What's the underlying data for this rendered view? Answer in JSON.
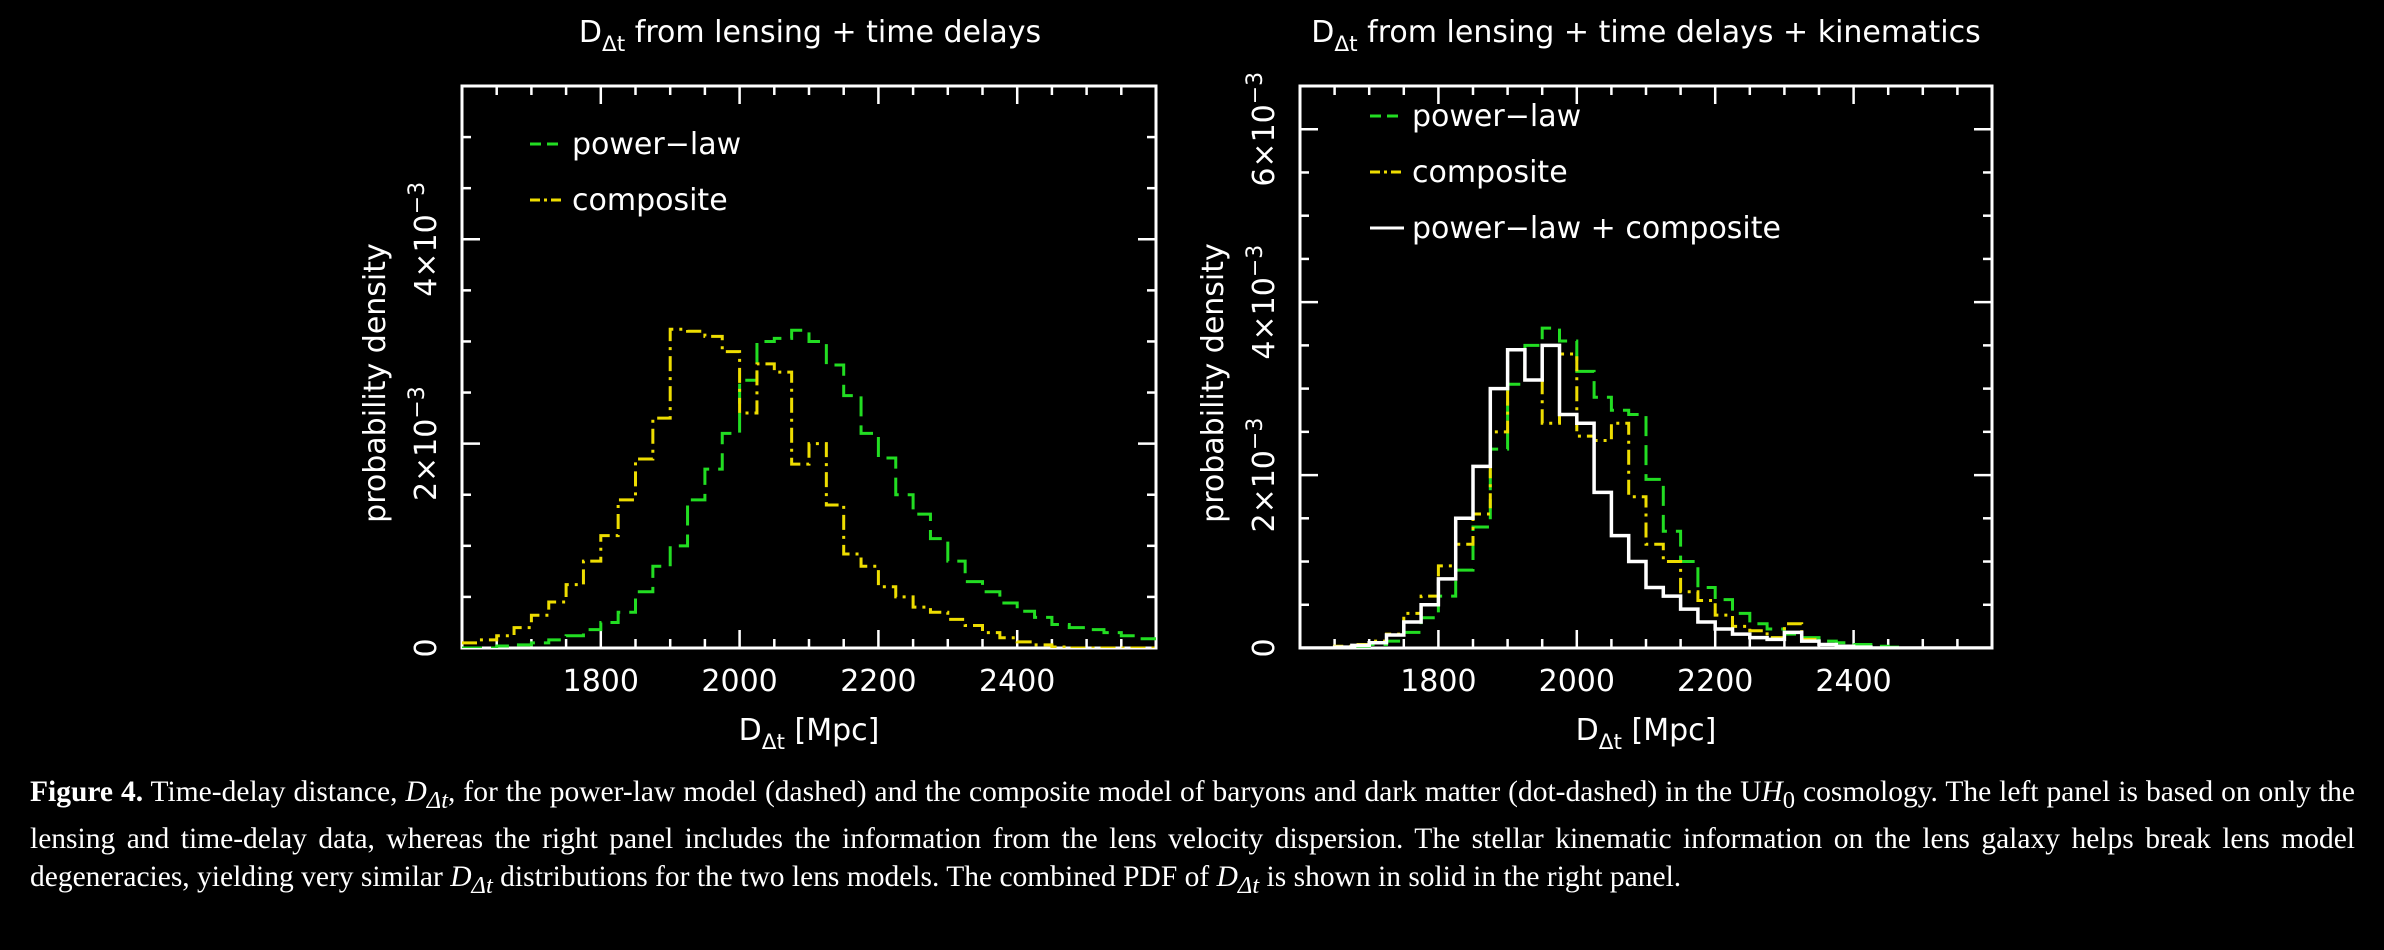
{
  "chart_data": [
    {
      "type": "histogram",
      "title": "D_Δt from lensing + time delays",
      "xlabel": "D_Δt [Mpc]",
      "ylabel": "probability density",
      "xlim": [
        1600,
        2600
      ],
      "ylim": [
        0,
        0.0055
      ],
      "xticks": [
        1800,
        2000,
        2200,
        2400
      ],
      "xtick_labels": [
        "1800",
        "2000",
        "2200",
        "2400"
      ],
      "yticks": [
        0,
        0.002,
        0.004
      ],
      "ytick_labels": [
        "0",
        "2×10",
        "4×10"
      ],
      "ytick_exponent": "−3",
      "legend_placement": "top-left",
      "bin_edges": [
        1600,
        1625,
        1650,
        1675,
        1700,
        1725,
        1750,
        1775,
        1800,
        1825,
        1850,
        1875,
        1900,
        1925,
        1950,
        1975,
        2000,
        2025,
        2050,
        2075,
        2100,
        2125,
        2150,
        2175,
        2200,
        2225,
        2250,
        2275,
        2300,
        2325,
        2350,
        2375,
        2400,
        2425,
        2450,
        2475,
        2500,
        2525,
        2550,
        2575,
        2600
      ],
      "series": [
        {
          "name": "power−law",
          "style": "dashed",
          "color": "#22dd22",
          "values": [
            0,
            0,
            2e-05,
            3e-05,
            5e-05,
            8e-05,
            0.00012,
            0.00018,
            0.00025,
            0.00035,
            0.00055,
            0.0008,
            0.001,
            0.00145,
            0.00175,
            0.0021,
            0.00262,
            0.003,
            0.00303,
            0.00311,
            0.003,
            0.00277,
            0.00247,
            0.0021,
            0.00186,
            0.0015,
            0.00131,
            0.00107,
            0.00085,
            0.00065,
            0.00055,
            0.00044,
            0.00036,
            0.0003,
            0.00023,
            0.0002,
            0.00018,
            0.00015,
            0.00012,
            9e-05
          ]
        },
        {
          "name": "composite",
          "style": "dot-dashed",
          "color": "#eedd00",
          "values": [
            5e-05,
            8e-05,
            0.00012,
            0.0002,
            0.00032,
            0.00045,
            0.00062,
            0.00085,
            0.0011,
            0.00145,
            0.00185,
            0.00225,
            0.00312,
            0.0031,
            0.00305,
            0.0029,
            0.0023,
            0.00278,
            0.0027,
            0.0018,
            0.002,
            0.0014,
            0.00092,
            0.0008,
            0.0006,
            0.0005,
            0.0004,
            0.00035,
            0.00028,
            0.00022,
            0.00015,
            0.0001,
            6e-05,
            3e-05,
            1e-05,
            0,
            0,
            0,
            0,
            0
          ]
        }
      ]
    },
    {
      "type": "histogram",
      "title": "D_Δt from lensing + time delays + kinematics",
      "xlabel": "D_Δt [Mpc]",
      "ylabel": "probability density",
      "xlim": [
        1600,
        2600
      ],
      "ylim": [
        0,
        0.0065
      ],
      "xticks": [
        1800,
        2000,
        2200,
        2400
      ],
      "xtick_labels": [
        "1800",
        "2000",
        "2200",
        "2400"
      ],
      "yticks": [
        0,
        0.002,
        0.004,
        0.006
      ],
      "ytick_labels": [
        "0",
        "2×10",
        "4×10",
        "6×10"
      ],
      "ytick_exponent": "−3",
      "legend_placement": "top-left",
      "bin_edges": [
        1600,
        1625,
        1650,
        1675,
        1700,
        1725,
        1750,
        1775,
        1800,
        1825,
        1850,
        1875,
        1900,
        1925,
        1950,
        1975,
        2000,
        2025,
        2050,
        2075,
        2100,
        2125,
        2150,
        2175,
        2200,
        2225,
        2250,
        2275,
        2300,
        2325,
        2350,
        2375,
        2400,
        2425,
        2450,
        2475,
        2500,
        2525,
        2550,
        2575,
        2600
      ],
      "series": [
        {
          "name": "power−law",
          "style": "dashed",
          "color": "#22dd22",
          "values": [
            0,
            0,
            1e-05,
            2e-05,
            4e-05,
            8e-05,
            0.00018,
            0.00035,
            0.0006,
            0.0009,
            0.0014,
            0.0023,
            0.00305,
            0.0035,
            0.0037,
            0.00355,
            0.0032,
            0.0029,
            0.00275,
            0.0027,
            0.00195,
            0.00135,
            0.001,
            0.0007,
            0.00056,
            0.0004,
            0.00028,
            0.00022,
            0.00016,
            0.00012,
            8e-05,
            6e-05,
            4e-05,
            2e-05,
            1e-05,
            0,
            0,
            0,
            0,
            0
          ]
        },
        {
          "name": "composite",
          "style": "dot-dashed",
          "color": "#eedd00",
          "values": [
            0,
            0,
            2e-05,
            4e-05,
            8e-05,
            0.00016,
            0.0004,
            0.0006,
            0.00095,
            0.0012,
            0.00155,
            0.0025,
            0.00345,
            0.0031,
            0.0026,
            0.0034,
            0.00245,
            0.0024,
            0.0026,
            0.00175,
            0.0012,
            0.001,
            0.00065,
            0.00055,
            0.00038,
            0.00025,
            0.0002,
            0.00012,
            0.00028,
            0.0001,
            4e-05,
            2e-05,
            1e-05,
            0,
            0,
            0,
            0,
            0,
            0,
            0
          ]
        },
        {
          "name": "power−law + composite",
          "style": "solid",
          "color": "#ffffff",
          "values": [
            0,
            0,
            1e-05,
            3e-05,
            6e-05,
            0.00015,
            0.0003,
            0.0005,
            0.0008,
            0.0015,
            0.0021,
            0.003,
            0.00345,
            0.0031,
            0.0035,
            0.0027,
            0.0026,
            0.0018,
            0.0013,
            0.001,
            0.0007,
            0.0006,
            0.00045,
            0.0003,
            0.00022,
            0.00016,
            0.00012,
            0.0001,
            0.00018,
            8e-05,
            4e-05,
            2e-05,
            1e-05,
            0,
            0,
            0,
            0,
            0,
            0,
            0
          ]
        }
      ]
    }
  ],
  "caption": {
    "label": "Figure 4.",
    "text_1": " Time-delay distance, ",
    "sym": "D",
    "sub": "Δt",
    "text_2": ", for the power-law model (dashed) and the composite model of baryons and dark matter (dot-dashed) in the U",
    "h0": "H",
    "h0_sub": "0",
    "text_3": " cosmology. The left panel is based on only the lensing and time-delay data, whereas the right panel includes the information from the lens velocity dispersion. The stellar kinematic information on the lens galaxy helps break lens model degeneracies, yielding very similar ",
    "text_4": " distributions for the two lens models. The combined PDF of ",
    "text_5": " is shown in solid in the right panel."
  }
}
